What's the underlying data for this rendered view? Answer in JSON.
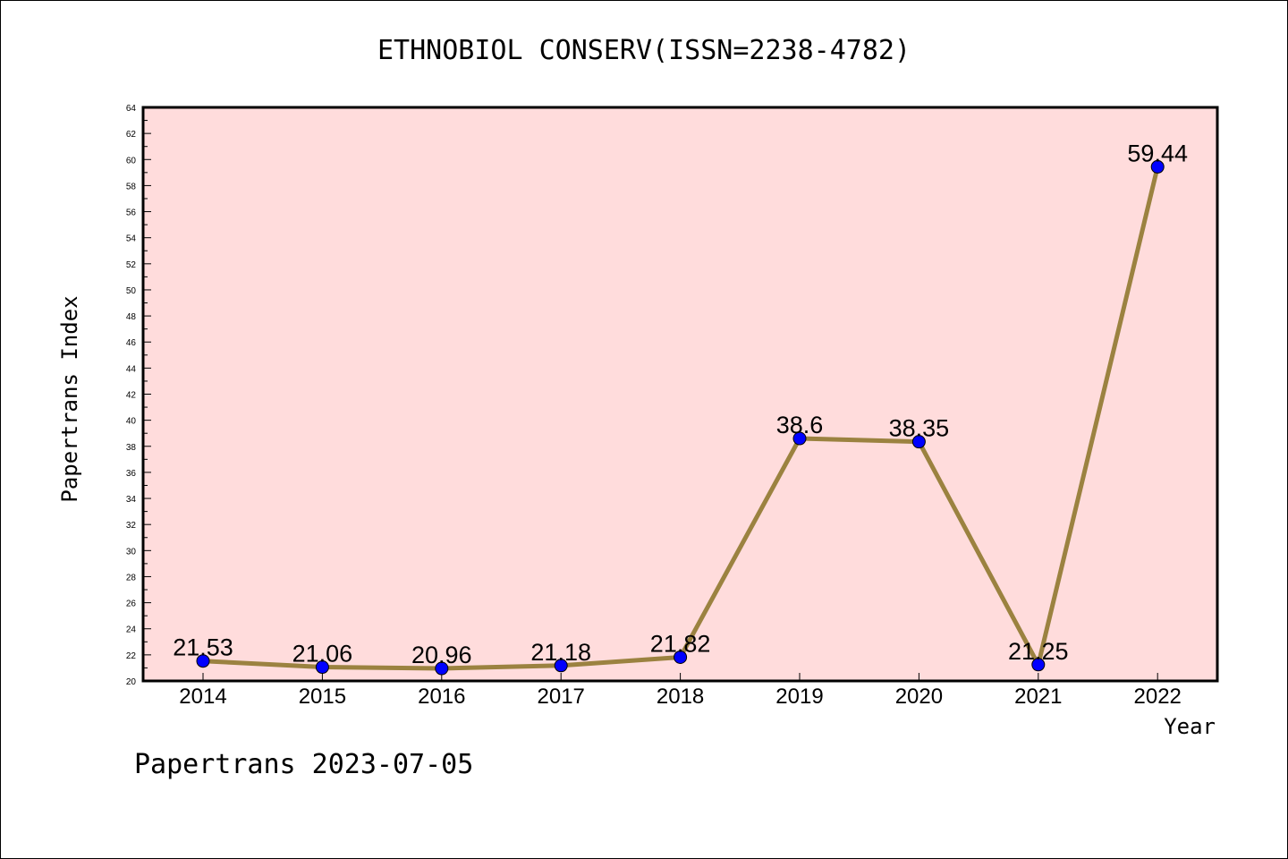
{
  "chart_data": {
    "type": "line",
    "title": "ETHNOBIOL CONSERV(ISSN=2238-4782)",
    "xlabel": "Year",
    "ylabel": "Papertrans Index",
    "ylim": [
      20,
      64
    ],
    "ytick_step": 2,
    "categories": [
      "2014",
      "2015",
      "2016",
      "2017",
      "2018",
      "2019",
      "2020",
      "2021",
      "2022"
    ],
    "series": [
      {
        "values": [
          21.53,
          21.06,
          20.96,
          21.18,
          21.82,
          38.6,
          38.35,
          21.25,
          59.44
        ],
        "value_labels": [
          "21.53",
          "21.06",
          "20.96",
          "21.18",
          "21.82",
          "38.6",
          "38.35",
          "21.25",
          "59.44"
        ]
      }
    ],
    "grid": false,
    "colors": {
      "plot_background": "#ffdcdc",
      "line": "#9b8240",
      "marker": "#0000ff"
    }
  },
  "footer": {
    "text": "Papertrans 2023-07-05"
  }
}
